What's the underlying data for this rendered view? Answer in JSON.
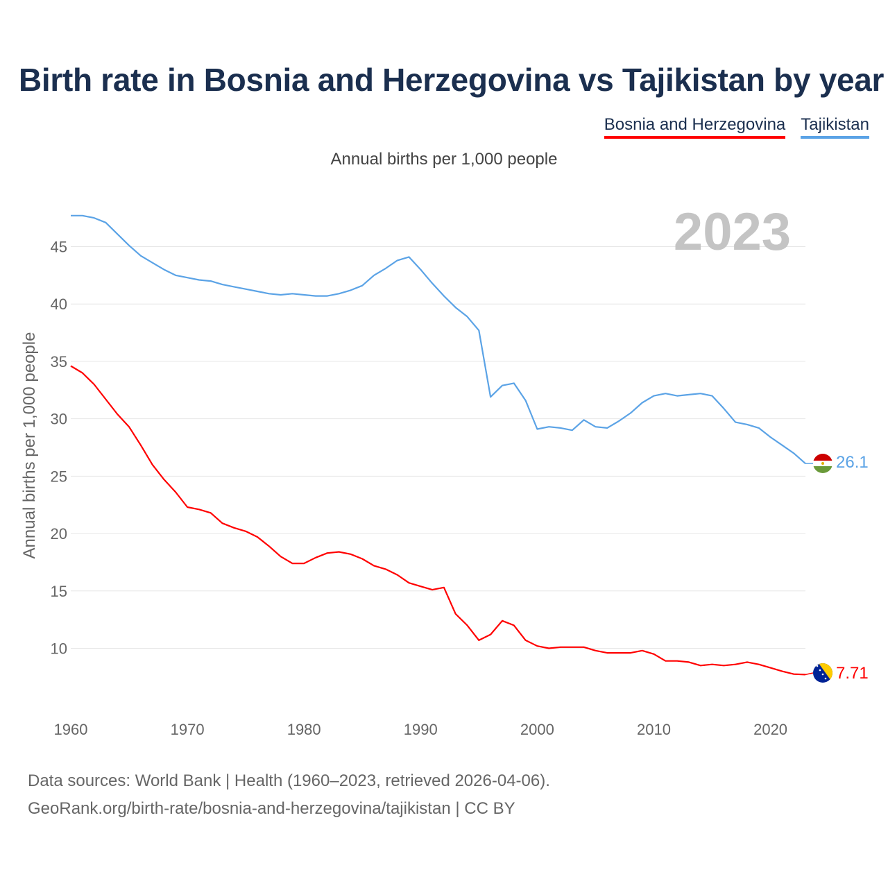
{
  "title": "Birth rate in Bosnia and Herzegovina vs Tajikistan by year",
  "subtitle": "Annual births per 1,000 people",
  "source_line1": "Data sources: World Bank | Health (1960–2023, retrieved 2026-04-06).",
  "source_line2": "GeoRank.org/birth-rate/bosnia-and-herzegovina/tajikistan | CC BY",
  "chart_data": {
    "type": "line",
    "title": "Birth rate in Bosnia and Herzegovina vs Tajikistan by year",
    "ylabel": "Annual births per 1,000 people",
    "xlabel": "",
    "year_label": "2023",
    "xlim": [
      1960,
      2023
    ],
    "ylim": [
      5,
      48
    ],
    "x_ticks": [
      1960,
      1970,
      1980,
      1990,
      2000,
      2010,
      2020
    ],
    "y_ticks": [
      10,
      15,
      20,
      25,
      30,
      35,
      40,
      45
    ],
    "grid": true,
    "legend_position": "top-right",
    "x": [
      1960,
      1961,
      1962,
      1963,
      1964,
      1965,
      1966,
      1967,
      1968,
      1969,
      1970,
      1971,
      1972,
      1973,
      1974,
      1975,
      1976,
      1977,
      1978,
      1979,
      1980,
      1981,
      1982,
      1983,
      1984,
      1985,
      1986,
      1987,
      1988,
      1989,
      1990,
      1991,
      1992,
      1993,
      1994,
      1995,
      1996,
      1997,
      1998,
      1999,
      2000,
      2001,
      2002,
      2003,
      2004,
      2005,
      2006,
      2007,
      2008,
      2009,
      2010,
      2011,
      2012,
      2013,
      2014,
      2015,
      2016,
      2017,
      2018,
      2019,
      2020,
      2021,
      2022,
      2023
    ],
    "series": [
      {
        "name": "Bosnia and Herzegovina",
        "color": "#ff0000",
        "end_label": "7.71",
        "values": [
          34.6,
          34.0,
          33.0,
          31.7,
          30.4,
          29.3,
          27.7,
          26.0,
          24.7,
          23.6,
          22.3,
          22.1,
          21.8,
          20.9,
          20.5,
          20.2,
          19.7,
          18.9,
          18.0,
          17.4,
          17.4,
          17.9,
          18.3,
          18.4,
          18.2,
          17.8,
          17.2,
          16.9,
          16.4,
          15.7,
          15.4,
          15.1,
          15.3,
          13.0,
          12.0,
          10.7,
          11.2,
          12.4,
          12.0,
          10.7,
          10.2,
          10.0,
          10.1,
          10.1,
          10.1,
          9.8,
          9.6,
          9.6,
          9.6,
          9.8,
          9.5,
          8.9,
          8.9,
          8.8,
          8.5,
          8.6,
          8.5,
          8.6,
          8.8,
          8.6,
          8.3,
          8.0,
          7.75,
          7.71
        ]
      },
      {
        "name": "Tajikistan",
        "color": "#5ba3e6",
        "end_label": "26.1",
        "values": [
          47.7,
          47.7,
          47.5,
          47.1,
          46.1,
          45.1,
          44.2,
          43.6,
          43.0,
          42.5,
          42.3,
          42.1,
          42.0,
          41.7,
          41.5,
          41.3,
          41.1,
          40.9,
          40.8,
          40.9,
          40.8,
          40.7,
          40.7,
          40.9,
          41.2,
          41.6,
          42.5,
          43.1,
          43.8,
          44.1,
          43.0,
          41.8,
          40.7,
          39.7,
          38.9,
          37.7,
          31.9,
          32.9,
          33.1,
          31.6,
          29.1,
          29.3,
          29.2,
          29.0,
          29.9,
          29.3,
          29.2,
          29.8,
          30.5,
          31.4,
          32.0,
          32.2,
          32.0,
          32.1,
          32.2,
          32.0,
          30.9,
          29.7,
          29.5,
          29.2,
          28.4,
          27.7,
          27.0,
          26.1
        ]
      }
    ]
  }
}
